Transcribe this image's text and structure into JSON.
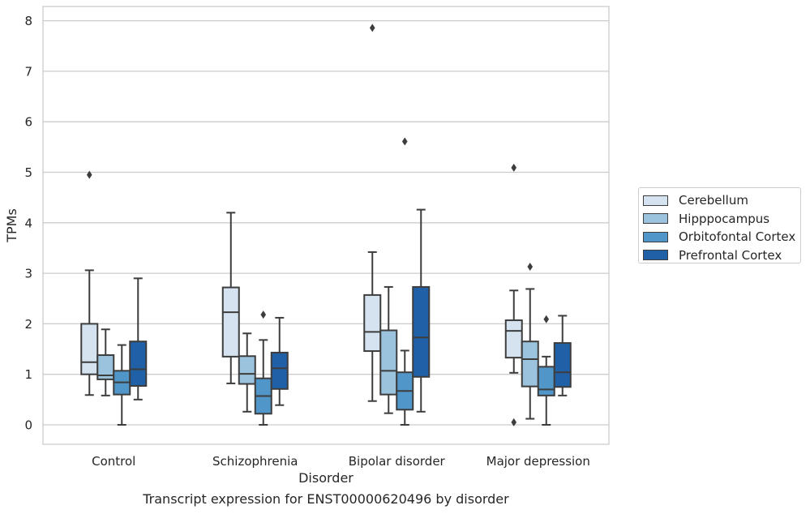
{
  "chart_data": {
    "type": "box",
    "caption": "Transcript expression for ENST00000620496 by disorder",
    "xlabel": "Disorder",
    "ylabel": "TPMs",
    "ylim": [
      -0.38,
      8.25
    ],
    "yticks": [
      0,
      1,
      2,
      3,
      4,
      5,
      6,
      7,
      8
    ],
    "categories": [
      "Control",
      "Schizophrenia",
      "Bipolar disorder",
      "Major depression"
    ],
    "grid": true,
    "legend_position": "right",
    "series": [
      {
        "name": "Cerebellum",
        "color": "#d5e3f1",
        "boxes": [
          {
            "whislo": 0.59,
            "q1": 1.0,
            "med": 1.24,
            "q3": 2.0,
            "whishi": 3.06,
            "fliers": [
              4.95
            ]
          },
          {
            "whislo": 0.82,
            "q1": 1.35,
            "med": 2.23,
            "q3": 2.72,
            "whishi": 4.2,
            "fliers": []
          },
          {
            "whislo": 0.47,
            "q1": 1.46,
            "med": 1.84,
            "q3": 2.57,
            "whishi": 3.42,
            "fliers": [
              7.86
            ]
          },
          {
            "whislo": 1.03,
            "q1": 1.33,
            "med": 1.86,
            "q3": 2.07,
            "whishi": 2.66,
            "fliers": [
              5.09,
              0.05
            ]
          }
        ]
      },
      {
        "name": "Hipppocampus",
        "color": "#9bc3dd",
        "boxes": [
          {
            "whislo": 0.58,
            "q1": 0.9,
            "med": 0.98,
            "q3": 1.38,
            "whishi": 1.89,
            "fliers": []
          },
          {
            "whislo": 0.26,
            "q1": 0.81,
            "med": 1.01,
            "q3": 1.36,
            "whishi": 1.81,
            "fliers": []
          },
          {
            "whislo": 0.23,
            "q1": 0.6,
            "med": 1.07,
            "q3": 1.87,
            "whishi": 2.73,
            "fliers": []
          },
          {
            "whislo": 0.12,
            "q1": 0.76,
            "med": 1.3,
            "q3": 1.65,
            "whishi": 2.69,
            "fliers": [
              3.13
            ]
          }
        ]
      },
      {
        "name": "Orbitofontal Cortex",
        "color": "#5196c8",
        "boxes": [
          {
            "whislo": 0.0,
            "q1": 0.6,
            "med": 0.84,
            "q3": 1.07,
            "whishi": 1.58,
            "fliers": []
          },
          {
            "whislo": 0.0,
            "q1": 0.22,
            "med": 0.57,
            "q3": 0.92,
            "whishi": 1.68,
            "fliers": [
              2.18
            ]
          },
          {
            "whislo": 0.0,
            "q1": 0.3,
            "med": 0.67,
            "q3": 1.04,
            "whishi": 1.47,
            "fliers": [
              5.61
            ]
          },
          {
            "whislo": 0.0,
            "q1": 0.58,
            "med": 0.7,
            "q3": 1.15,
            "whishi": 1.35,
            "fliers": [
              2.09
            ]
          }
        ]
      },
      {
        "name": "Prefrontal Cortex",
        "color": "#2060a6",
        "boxes": [
          {
            "whislo": 0.5,
            "q1": 0.77,
            "med": 1.1,
            "q3": 1.65,
            "whishi": 2.9,
            "fliers": []
          },
          {
            "whislo": 0.39,
            "q1": 0.71,
            "med": 1.12,
            "q3": 1.43,
            "whishi": 2.12,
            "fliers": []
          },
          {
            "whislo": 0.26,
            "q1": 0.95,
            "med": 1.73,
            "q3": 2.73,
            "whishi": 4.26,
            "fliers": []
          },
          {
            "whislo": 0.58,
            "q1": 0.75,
            "med": 1.04,
            "q3": 1.62,
            "whishi": 2.16,
            "fliers": []
          }
        ]
      }
    ]
  }
}
